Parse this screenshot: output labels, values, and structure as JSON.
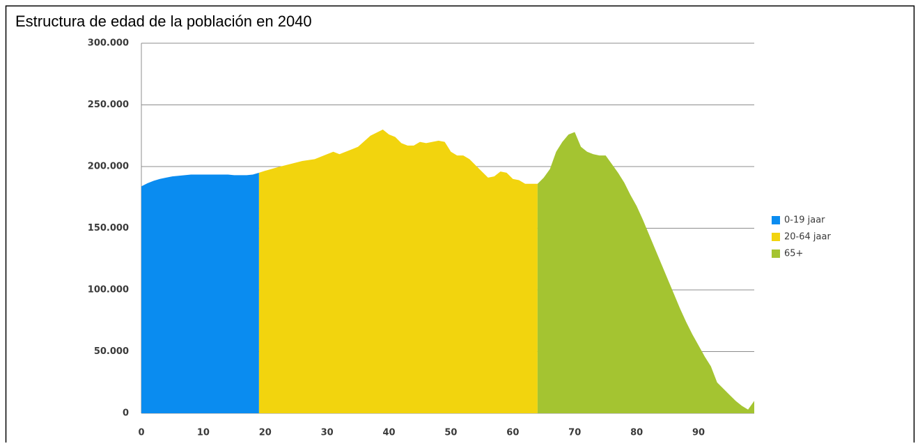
{
  "chart_data": {
    "type": "area",
    "title": "Estructura de edad de la población en 2040",
    "xlim": [
      0,
      99
    ],
    "xticks": [
      0,
      10,
      20,
      30,
      40,
      50,
      60,
      70,
      80,
      90
    ],
    "ylim": [
      0,
      300000
    ],
    "yticks": [
      {
        "value": 0,
        "label": "0"
      },
      {
        "value": 50000,
        "label": "50.000"
      },
      {
        "value": 100000,
        "label": "100.000"
      },
      {
        "value": 150000,
        "label": "150.000"
      },
      {
        "value": 200000,
        "label": "200.000"
      },
      {
        "value": 250000,
        "label": "250.000"
      },
      {
        "value": 300000,
        "label": "300.000"
      }
    ],
    "grid": true,
    "legend": "right",
    "series": [
      {
        "name": "0-19 jaar",
        "color": "#0a8cf0",
        "x": [
          0,
          1,
          2,
          3,
          4,
          5,
          6,
          7,
          8,
          9,
          10,
          11,
          12,
          13,
          14,
          15,
          16,
          17,
          18,
          19
        ],
        "values": [
          184000,
          186500,
          188500,
          190000,
          191000,
          192000,
          192500,
          193000,
          193500,
          193500,
          193500,
          193500,
          193500,
          193500,
          193500,
          193000,
          193000,
          193000,
          193500,
          195000
        ]
      },
      {
        "name": "20-64 jaar",
        "color": "#f2d40e",
        "x": [
          19,
          20,
          22,
          24,
          26,
          28,
          30,
          31,
          32,
          33,
          35,
          37,
          39,
          40,
          41,
          42,
          43,
          44,
          45,
          46,
          47,
          48,
          49,
          50,
          51,
          52,
          53,
          54,
          55,
          56,
          57,
          58,
          59,
          60,
          61,
          62,
          63,
          64
        ],
        "values": [
          195000,
          196600,
          199400,
          202000,
          204500,
          206000,
          210000,
          212000,
          210000,
          212000,
          216000,
          225000,
          230000,
          226000,
          224000,
          219000,
          217000,
          217000,
          220000,
          219000,
          220000,
          221000,
          220000,
          212000,
          209000,
          209000,
          206000,
          201000,
          196000,
          191000,
          192000,
          196000,
          195000,
          190000,
          189000,
          186000,
          186000,
          186000
        ]
      },
      {
        "name": "65+",
        "color": "#a4c431",
        "x": [
          64,
          65,
          66,
          67,
          68,
          69,
          70,
          71,
          72,
          73,
          74,
          75,
          76,
          77,
          78,
          79,
          80,
          81,
          82,
          83,
          84,
          85,
          86,
          87,
          88,
          89,
          90,
          91,
          92,
          93,
          94,
          95,
          96,
          97,
          98,
          99
        ],
        "values": [
          186000,
          191000,
          198000,
          212000,
          220000,
          226000,
          228000,
          216000,
          212000,
          210000,
          209000,
          209000,
          202000,
          195000,
          187000,
          177000,
          168000,
          157000,
          145000,
          133000,
          121000,
          109000,
          97000,
          85000,
          74000,
          64000,
          55000,
          46000,
          38000,
          25000,
          20000,
          15000,
          10000,
          6000,
          3000,
          10000
        ]
      }
    ]
  }
}
